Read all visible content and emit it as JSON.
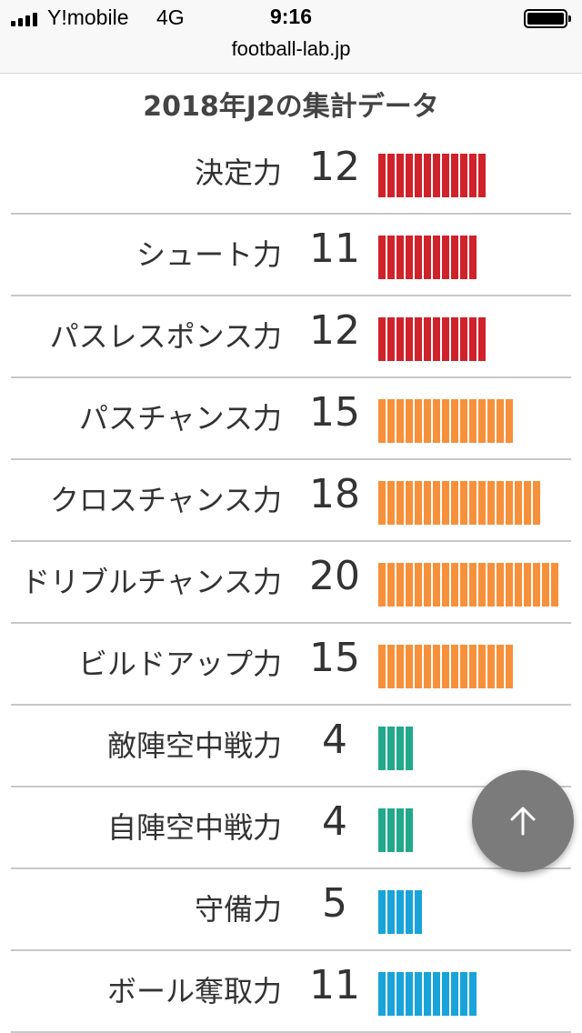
{
  "status_bar": {
    "carrier": "Y!mobile",
    "network": "4G",
    "time": "9:16"
  },
  "browser": {
    "url": "football-lab.jp"
  },
  "page": {
    "title": "2018年J2の集計データ"
  },
  "colors": {
    "red": "#d0222a",
    "orange": "#f7903a",
    "teal": "#22a88a",
    "blue": "#18a4d8"
  },
  "stats": [
    {
      "label": "決定力",
      "value": "12",
      "count": 12,
      "color": "#d0222a"
    },
    {
      "label": "シュート力",
      "value": "11",
      "count": 11,
      "color": "#d0222a"
    },
    {
      "label": "パスレスポンス力",
      "value": "12",
      "count": 12,
      "color": "#d0222a"
    },
    {
      "label": "パスチャンス力",
      "value": "15",
      "count": 15,
      "color": "#f7903a"
    },
    {
      "label": "クロスチャンス力",
      "value": "18",
      "count": 18,
      "color": "#f7903a"
    },
    {
      "label": "ドリブルチャンス力",
      "value": "20",
      "count": 20,
      "color": "#f7903a"
    },
    {
      "label": "ビルドアップ力",
      "value": "15",
      "count": 15,
      "color": "#f7903a"
    },
    {
      "label": "敵陣空中戦力",
      "value": "4",
      "count": 4,
      "color": "#22a88a"
    },
    {
      "label": "自陣空中戦力",
      "value": "4",
      "count": 4,
      "color": "#22a88a"
    },
    {
      "label": "守備力",
      "value": "5",
      "count": 5,
      "color": "#18a4d8"
    },
    {
      "label": "ボール奪取力",
      "value": "11",
      "count": 11,
      "color": "#18a4d8"
    }
  ],
  "scroll_top_button": {
    "icon": "arrow-up-icon"
  }
}
